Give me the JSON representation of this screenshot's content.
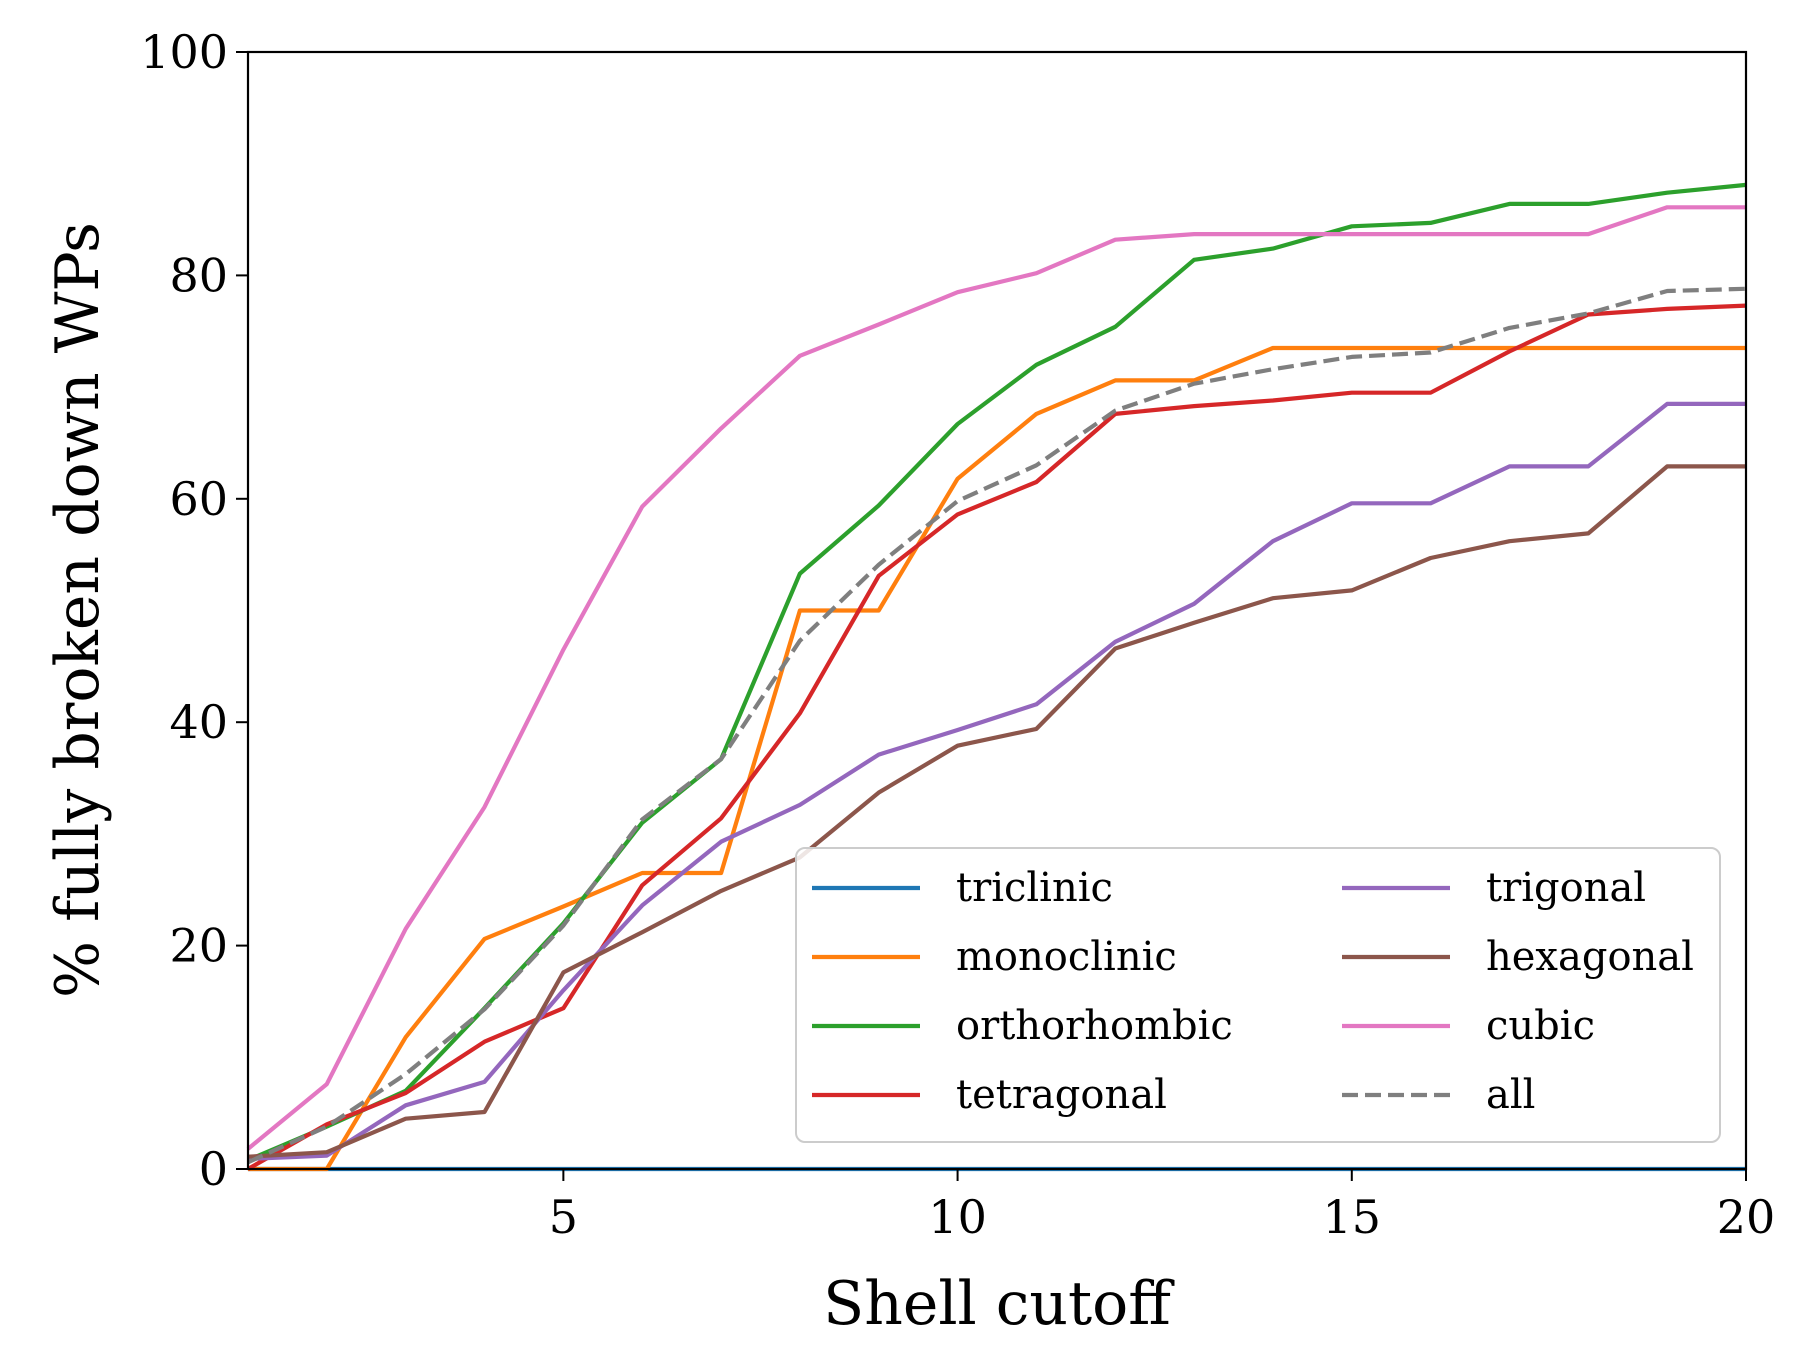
{
  "chart_data": {
    "type": "line",
    "title": "",
    "xlabel": "Shell cutoff",
    "ylabel": "% fully broken down WPs",
    "xlim": [
      1,
      20
    ],
    "ylim": [
      0,
      100
    ],
    "xticks": [
      5,
      10,
      15,
      20
    ],
    "yticks": [
      0,
      20,
      40,
      60,
      80,
      100
    ],
    "grid": false,
    "legend_position": "lower-right",
    "legend_columns": 2,
    "x": [
      1,
      2,
      3,
      4,
      5,
      6,
      7,
      8,
      9,
      10,
      11,
      12,
      13,
      14,
      15,
      16,
      17,
      18,
      19,
      20
    ],
    "series": [
      {
        "name": "triclinic",
        "color": "#1f77b4",
        "style": "solid",
        "values": [
          0,
          0,
          0,
          0,
          0,
          0,
          0,
          0,
          0,
          0,
          0,
          0,
          0,
          0,
          0,
          0,
          0,
          0,
          0,
          0
        ]
      },
      {
        "name": "monoclinic",
        "color": "#ff7f0e",
        "style": "solid",
        "values": [
          0,
          0,
          11.8,
          20.6,
          23.5,
          26.5,
          26.5,
          50,
          50,
          61.8,
          67.6,
          70.6,
          70.6,
          73.5,
          73.5,
          73.5,
          73.5,
          73.5,
          73.5,
          73.5
        ]
      },
      {
        "name": "orthorhombic",
        "color": "#2ca02c",
        "style": "solid",
        "values": [
          0.8,
          3.8,
          7,
          14.4,
          22,
          31,
          36.7,
          53.3,
          59.4,
          66.7,
          72,
          75.4,
          81.4,
          82.4,
          84.4,
          84.7,
          86.4,
          86.4,
          87.4,
          88.1
        ]
      },
      {
        "name": "tetragonal",
        "color": "#d62728",
        "style": "solid",
        "values": [
          0,
          4,
          6.8,
          11.4,
          14.4,
          25.4,
          31.4,
          40.8,
          53.1,
          58.6,
          61.5,
          67.6,
          68.3,
          68.8,
          69.5,
          69.5,
          73.2,
          76.5,
          77,
          77.3
        ]
      },
      {
        "name": "trigonal",
        "color": "#9467bd",
        "style": "solid",
        "values": [
          0.9,
          1.2,
          5.7,
          7.8,
          16,
          23.6,
          29.3,
          32.6,
          37.1,
          39.3,
          41.6,
          47.2,
          50.6,
          56.2,
          59.6,
          59.6,
          62.9,
          62.9,
          68.5,
          68.5
        ]
      },
      {
        "name": "hexagonal",
        "color": "#8c564b",
        "style": "solid",
        "values": [
          1.1,
          1.5,
          4.5,
          5.1,
          17.6,
          21.2,
          24.9,
          27.9,
          33.7,
          37.9,
          39.4,
          46.6,
          48.9,
          51.1,
          51.8,
          54.7,
          56.2,
          56.9,
          62.9,
          62.9
        ]
      },
      {
        "name": "cubic",
        "color": "#e377c2",
        "style": "solid",
        "values": [
          1.8,
          7.6,
          21.5,
          32.4,
          46.5,
          59.3,
          66.3,
          72.8,
          75.6,
          78.5,
          80.2,
          83.2,
          83.7,
          83.7,
          83.7,
          83.7,
          83.7,
          83.7,
          86.1,
          86.1
        ]
      },
      {
        "name": "all",
        "color": "#7f7f7f",
        "style": "dashed",
        "values": [
          0.6,
          3.8,
          8.5,
          14.3,
          21.8,
          31.3,
          36.7,
          47.3,
          54.1,
          59.8,
          63,
          67.9,
          70.3,
          71.6,
          72.7,
          73.1,
          75.3,
          76.6,
          78.6,
          78.8
        ]
      }
    ]
  }
}
